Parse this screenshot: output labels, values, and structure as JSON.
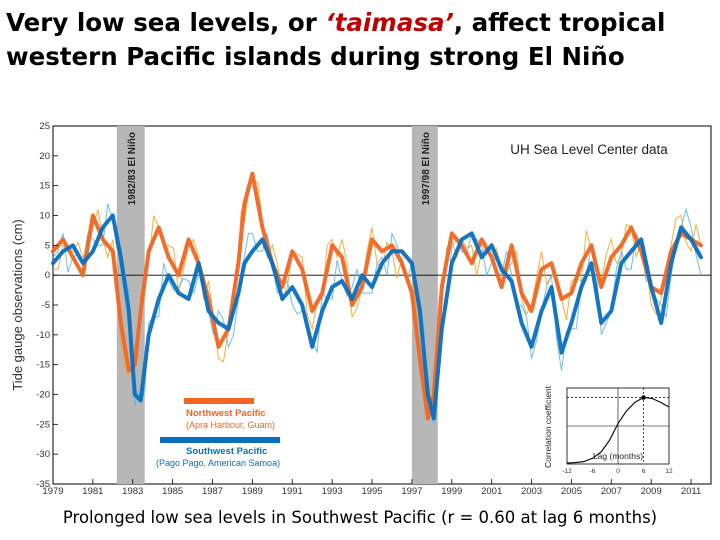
{
  "slide": {
    "title_part1": "Very low sea levels, or ",
    "title_accent": "‘taimasa’",
    "title_part2": ", affect tropical western Pacific islands during strong El Niño",
    "caption": "Prolonged low sea levels in Southwest Pacific (r = 0.60 at lag 6 months)"
  },
  "colors": {
    "northwest_pacific": "#f26522",
    "southwest_pacific": "#0a6fbf",
    "annual_orange": "#f5a623",
    "annual_blue": "#5bb8e8",
    "el_nino_band": "#b7b7b7",
    "zero_line": "#000000"
  },
  "chart_data": [
    {
      "type": "line",
      "title": "",
      "annotation": "UH Sea Level Center data",
      "xlabel": "",
      "ylabel": "Tide gauge observations (cm)",
      "xlim": [
        1979,
        2012
      ],
      "ylim": [
        -35,
        25
      ],
      "yticks": [
        25,
        20,
        15,
        10,
        5,
        0,
        -5,
        -10,
        -15,
        -20,
        -25,
        -30,
        -35
      ],
      "xticks": [
        "1979",
        "1981",
        "1983",
        "1985",
        "1987",
        "1989",
        "1991",
        "1993",
        "1995",
        "1997",
        "1999",
        "2001",
        "2003",
        "2005",
        "2007",
        "2009",
        "2011"
      ],
      "zero_line": true,
      "grid": false,
      "legend_position": "bottom-left",
      "shaded_periods": [
        {
          "label": "1982/83 El Niño",
          "start": 1982.2,
          "end": 1983.6
        },
        {
          "label": "1997/98 El Niño",
          "start": 1997.0,
          "end": 1998.3
        }
      ],
      "series": [
        {
          "name": "Northwest Pacific",
          "sublabel": "(Apra Harbour, Guam)",
          "x": [
            1979,
            1979.5,
            1980,
            1980.5,
            1981,
            1981.5,
            1982,
            1982.4,
            1982.8,
            1983.1,
            1983.4,
            1983.8,
            1984.3,
            1984.8,
            1985.3,
            1985.8,
            1986.3,
            1986.8,
            1987.3,
            1987.8,
            1988.3,
            1988.6,
            1989,
            1989.5,
            1990,
            1990.5,
            1991,
            1991.5,
            1992,
            1992.5,
            1993,
            1993.5,
            1994,
            1994.5,
            1995,
            1995.5,
            1996,
            1996.5,
            1997,
            1997.4,
            1997.8,
            1998.1,
            1998.5,
            1999,
            1999.5,
            2000,
            2000.5,
            2001,
            2001.5,
            2002,
            2002.5,
            2003,
            2003.5,
            2004,
            2004.5,
            2005,
            2005.5,
            2006,
            2006.5,
            2007,
            2007.5,
            2008,
            2008.5,
            2009,
            2009.5,
            2010,
            2010.5,
            2011,
            2011.5
          ],
          "values": [
            4,
            6,
            3,
            0,
            10,
            6,
            4,
            -8,
            -16,
            -15,
            -6,
            4,
            8,
            3,
            0,
            6,
            2,
            -4,
            -12,
            -9,
            2,
            12,
            17,
            8,
            2,
            -2,
            4,
            1,
            -6,
            -3,
            5,
            3,
            -5,
            -2,
            6,
            4,
            5,
            2,
            -3,
            -14,
            -24,
            -20,
            -2,
            7,
            5,
            2,
            6,
            3,
            -2,
            5,
            -3,
            -6,
            1,
            2,
            -4,
            -3,
            2,
            5,
            -2,
            3,
            5,
            8,
            4,
            -2,
            -3,
            4,
            7,
            6,
            5
          ]
        },
        {
          "name": "Southwest Pacific",
          "sublabel": "(Pago Pago, American Samoa)",
          "x": [
            1979,
            1979.5,
            1980,
            1980.5,
            1981,
            1981.5,
            1982,
            1982.4,
            1982.8,
            1983.1,
            1983.4,
            1983.8,
            1984.3,
            1984.8,
            1985.3,
            1985.8,
            1986.3,
            1986.8,
            1987.3,
            1987.8,
            1988.3,
            1988.6,
            1989,
            1989.5,
            1990,
            1990.5,
            1991,
            1991.5,
            1992,
            1992.5,
            1993,
            1993.5,
            1994,
            1994.5,
            1995,
            1995.5,
            1996,
            1996.5,
            1997,
            1997.4,
            1997.8,
            1998.1,
            1998.5,
            1999,
            1999.5,
            2000,
            2000.5,
            2001,
            2001.5,
            2002,
            2002.5,
            2003,
            2003.5,
            2004,
            2004.5,
            2005,
            2005.5,
            2006,
            2006.5,
            2007,
            2007.5,
            2008,
            2008.5,
            2009,
            2009.5,
            2010,
            2010.5,
            2011,
            2011.5
          ],
          "values": [
            2,
            4,
            5,
            2,
            4,
            8,
            10,
            3,
            -6,
            -20,
            -21,
            -10,
            -4,
            0,
            -3,
            -4,
            2,
            -6,
            -8,
            -9,
            -3,
            2,
            4,
            6,
            2,
            -4,
            -2,
            -5,
            -12,
            -6,
            -2,
            -1,
            -4,
            0,
            -2,
            2,
            4,
            4,
            2,
            -6,
            -20,
            -24,
            -9,
            2,
            6,
            7,
            3,
            5,
            1,
            -1,
            -8,
            -12,
            -6,
            -2,
            -13,
            -8,
            -2,
            2,
            -8,
            -6,
            2,
            4,
            6,
            -2,
            -8,
            2,
            8,
            6,
            3
          ]
        }
      ]
    },
    {
      "type": "line",
      "title": "",
      "xlabel": "Lag (months)",
      "ylabel": "Correlation coefficient",
      "xlim": [
        -12,
        12
      ],
      "ylim": [
        -0.8,
        0.8
      ],
      "reference_line_x": 6,
      "reference_line_y": 0.6,
      "series": [
        {
          "x": [
            -12,
            -10,
            -8,
            -6,
            -4,
            -2,
            0,
            2,
            4,
            6,
            8,
            10,
            12
          ],
          "values": [
            -0.78,
            -0.77,
            -0.75,
            -0.68,
            -0.55,
            -0.3,
            0.05,
            0.32,
            0.5,
            0.6,
            0.58,
            0.5,
            0.4
          ]
        }
      ]
    }
  ]
}
